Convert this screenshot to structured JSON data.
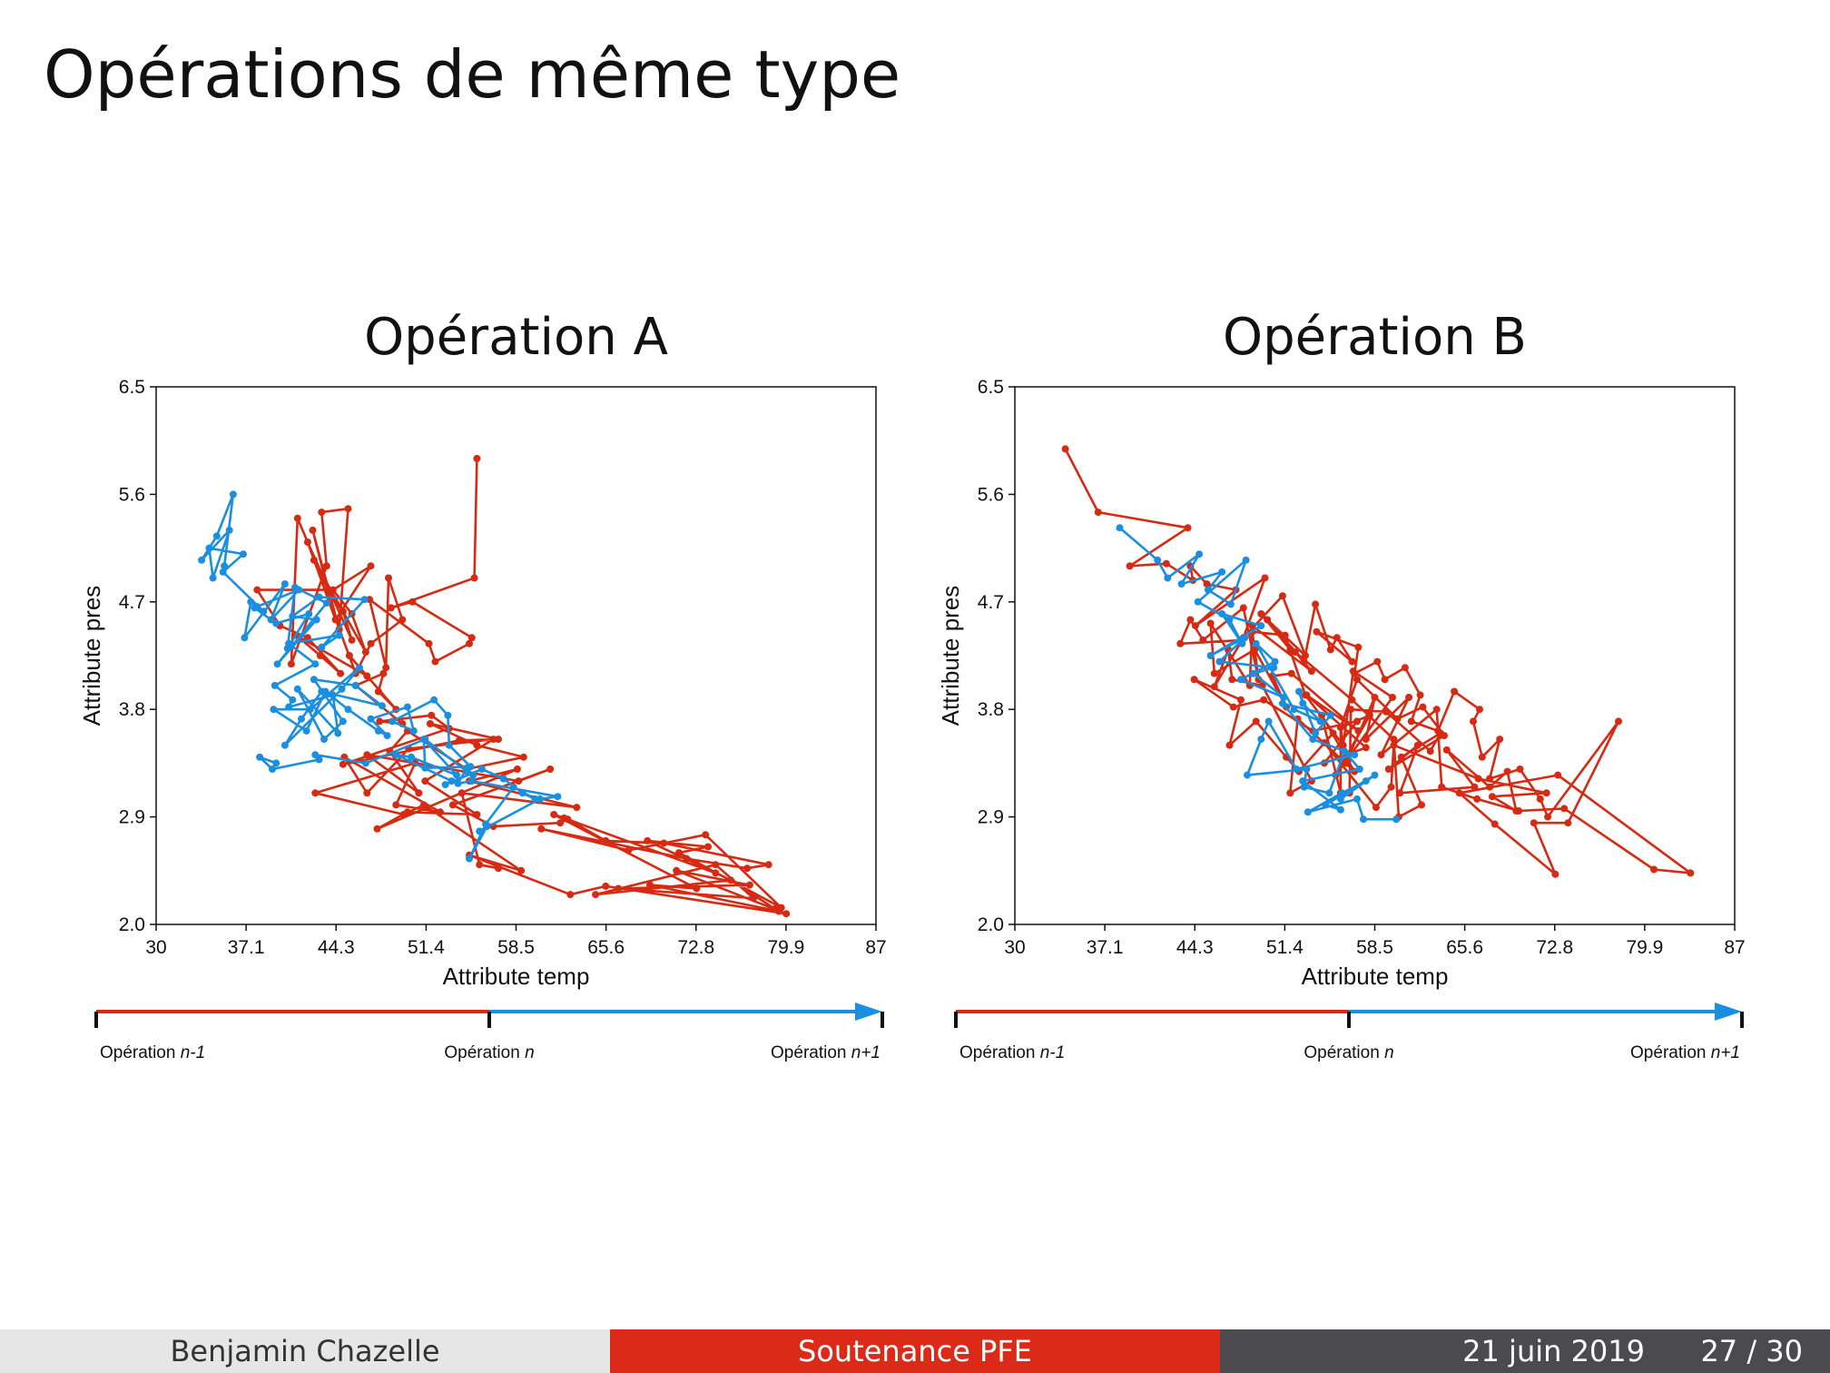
{
  "slide": {
    "title": "Opérations de même type"
  },
  "footer": {
    "author": "Benjamin Chazelle",
    "event": "Soutenance PFE",
    "date": "21 juin 2019",
    "page": "27 / 30"
  },
  "colors": {
    "prev": "#d62a12",
    "next": "#1a8fe0",
    "footer_red": "#db2a18",
    "footer_dark": "#4a4a4f"
  },
  "chart_data": [
    {
      "type": "line",
      "title": "Opération A",
      "xlabel": "Attribute temp",
      "ylabel": "Attribute pres",
      "xlim": [
        30,
        87
      ],
      "ylim": [
        2.0,
        6.5
      ],
      "xticks": [
        "30",
        "37.1",
        "44.3",
        "51.4",
        "58.5",
        "65.6",
        "72.8",
        "79.9",
        "87"
      ],
      "yticks": [
        "2.0",
        "2.9",
        "3.8",
        "4.7",
        "5.6",
        "6.5"
      ],
      "timeline": {
        "start": "Opération",
        "start_suffix": "n-1",
        "mid": "Opération",
        "mid_suffix": "n",
        "end": "Opération",
        "end_suffix": "n+1"
      },
      "series": [
        {
          "name": "Opération n-1 → n",
          "color": "#d62a12",
          "x": [
            55.4,
            55.2,
            48.6,
            50.3,
            55.0,
            54.8,
            52.1,
            51.6,
            46.9,
            48.2,
            48.4,
            49.5,
            47.0,
            45.8,
            42.5,
            46.6,
            45.5,
            44.0,
            47.0,
            44.2,
            42.0,
            45.5,
            44.8,
            43.8,
            41.2,
            40.7,
            43.5,
            43.1,
            45.2,
            44.5,
            42.4,
            43.6,
            38.0,
            39.8,
            42.0,
            44.6,
            43.0,
            41.1,
            46.7,
            45.3,
            49.0,
            47.6,
            48.0,
            45.8,
            49.5,
            47.7,
            51.8,
            53.2,
            44.8,
            54.0,
            57.1,
            51.7,
            55.4,
            59.1,
            54.6,
            49.9,
            48.5,
            50.8,
            46.7,
            58.7,
            61.2,
            53.5,
            56.7,
            62.0,
            62.6,
            65.6,
            70.2,
            78.5,
            76.8,
            72.0,
            60.5,
            67.4,
            73.5,
            79.5,
            71.4,
            73.7,
            68.9,
            74.3,
            62.3,
            61.5,
            72.8,
            69.1,
            79.3,
            79.0,
            75.5,
            64.8,
            74.3,
            77.3,
            66.6,
            77.0,
            71.2,
            79.9,
            65.6,
            62.8,
            54.8,
            58.9,
            51.2,
            49.6,
            42.6,
            50.5,
            49.0,
            52.5,
            44.9,
            46.7,
            50.0,
            56.7,
            51.3,
            55.4,
            49.9,
            47.5,
            58.6,
            54.8,
            63.3,
            54.2,
            55.6,
            57.1
          ],
          "y": [
            5.9,
            4.9,
            4.65,
            4.7,
            4.4,
            4.35,
            4.2,
            4.35,
            4.72,
            4.15,
            4.9,
            4.55,
            4.35,
            4.1,
            5.05,
            4.28,
            4.6,
            4.8,
            5.0,
            4.55,
            5.2,
            4.38,
            4.62,
            4.75,
            5.4,
            4.18,
            5.0,
            5.45,
            5.48,
            4.47,
            5.3,
            4.8,
            4.8,
            4.5,
            4.4,
            4.1,
            4.25,
            4.42,
            4.08,
            4.25,
            3.8,
            3.95,
            4.1,
            4.0,
            3.68,
            3.7,
            3.75,
            3.64,
            3.34,
            3.54,
            3.55,
            3.68,
            3.5,
            3.4,
            3.3,
            3.62,
            3.45,
            3.1,
            3.42,
            3.2,
            3.3,
            3.0,
            2.82,
            2.85,
            2.88,
            2.7,
            2.68,
            2.5,
            2.47,
            2.55,
            2.8,
            2.62,
            2.75,
            2.14,
            2.6,
            2.65,
            2.7,
            2.43,
            2.89,
            2.92,
            2.3,
            2.33,
            2.11,
            2.13,
            2.37,
            2.25,
            2.5,
            2.22,
            2.3,
            2.33,
            2.45,
            2.09,
            2.32,
            2.25,
            2.58,
            2.45,
            3.0,
            2.92,
            3.1,
            3.35,
            3.0,
            2.94,
            3.4,
            3.1,
            3.47,
            3.55,
            3.2,
            2.92,
            2.94,
            2.8,
            3.3,
            3.2,
            2.98,
            3.1,
            2.5,
            2.47
          ]
        },
        {
          "name": "Opération n → n+1",
          "color": "#1a8fe0",
          "x": [
            35.4,
            36.1,
            34.8,
            33.6,
            35.8,
            34.5,
            34.2,
            36.9,
            35.3,
            38.5,
            37.5,
            37.0,
            40.2,
            39.1,
            41.3,
            38.0,
            37.8,
            39.5,
            42.1,
            40.4,
            41.0,
            43.5,
            39.6,
            42.7,
            40.8,
            42.9,
            46.5,
            43.1,
            44.5,
            40.5,
            42.6,
            39.4,
            40.8,
            40.5,
            44.0,
            44.4,
            41.2,
            43.3,
            44.8,
            42.5,
            45.8,
            47.9,
            43.1,
            41.5,
            40.2,
            44.7,
            46.1,
            42.2,
            39.3,
            41.9,
            43.4,
            45.2,
            47.6,
            48.3,
            47.0,
            49.9,
            50.4,
            48.7,
            52.0,
            53.1,
            53.2,
            54.9,
            51.3,
            51.2,
            53.8,
            50.2,
            49.0,
            53.4,
            52.9,
            55.8,
            57.5,
            59.0,
            60.0,
            58.3,
            56.1,
            54.8,
            56.2,
            55.6,
            60.4,
            61.8,
            55.0,
            53.9,
            54.6,
            55.1,
            54.6,
            51.3,
            46.6,
            42.6,
            42.9,
            39.2,
            38.2,
            39.5
          ],
          "y": [
            5.0,
            5.6,
            5.25,
            5.05,
            5.3,
            4.9,
            5.15,
            5.1,
            4.95,
            4.62,
            4.7,
            4.4,
            4.85,
            4.55,
            4.8,
            4.66,
            4.65,
            4.52,
            4.6,
            4.31,
            4.82,
            4.69,
            4.18,
            4.55,
            4.58,
            4.74,
            4.72,
            4.32,
            4.42,
            4.35,
            4.18,
            4.0,
            3.88,
            3.82,
            3.92,
            3.6,
            3.97,
            3.55,
            3.7,
            4.05,
            4.0,
            3.83,
            3.95,
            3.72,
            3.5,
            3.97,
            4.15,
            3.8,
            3.8,
            3.62,
            3.95,
            3.8,
            3.62,
            3.58,
            3.72,
            3.82,
            3.62,
            3.7,
            3.88,
            3.75,
            3.5,
            3.32,
            3.31,
            3.55,
            3.25,
            3.4,
            3.42,
            3.2,
            3.17,
            3.3,
            3.22,
            3.1,
            3.05,
            3.15,
            2.84,
            2.55,
            2.82,
            2.78,
            3.05,
            3.07,
            3.2,
            3.18,
            3.31,
            3.25,
            3.28,
            3.55,
            3.35,
            3.42,
            3.38,
            3.3,
            3.4,
            3.35
          ]
        }
      ]
    },
    {
      "type": "line",
      "title": "Opération B",
      "xlabel": "Attribute temp",
      "ylabel": "Attribute pres",
      "xlim": [
        30,
        87
      ],
      "ylim": [
        2.0,
        6.5
      ],
      "xticks": [
        "30",
        "37.1",
        "44.3",
        "51.4",
        "58.5",
        "65.6",
        "72.8",
        "79.9",
        "87"
      ],
      "yticks": [
        "2.0",
        "2.9",
        "3.8",
        "4.7",
        "5.6",
        "6.5"
      ],
      "timeline": {
        "start": "Opération",
        "start_suffix": "n-1",
        "mid": "Opération",
        "mid_suffix": "n",
        "end": "Opération",
        "end_suffix": "n+1"
      },
      "series": [
        {
          "name": "Opération n-1 → n",
          "color": "#d62a12",
          "x": [
            34.0,
            36.6,
            43.7,
            39.1,
            42.0,
            44.1,
            43.9,
            45.2,
            47.5,
            44.3,
            49.8,
            48.1,
            51.2,
            53.0,
            49.5,
            51.8,
            50.0,
            52.9,
            53.8,
            55.0,
            55.5,
            56.7,
            53.9,
            57.2,
            56.9,
            58.7,
            59.3,
            60.9,
            62.1,
            61.4,
            63.5,
            64.8,
            66.8,
            66.3,
            67.0,
            68.4,
            67.6,
            70.0,
            71.6,
            72.2,
            77.8,
            73.8,
            71.1,
            72.8,
            68.0,
            65.2,
            73.0,
            83.5,
            80.6,
            73.5,
            69.9,
            66.6,
            63.8,
            63.4,
            59.0,
            61.2,
            57.8,
            58.5,
            56.2,
            55.8,
            55.8,
            54.3,
            56.9,
            52.4,
            51.8,
            53.5,
            49.6,
            47.2,
            46.9,
            45.8,
            48.0,
            43.1,
            43.9,
            44.9,
            48.1,
            49.3,
            48.8,
            51.4,
            53.0,
            56.0,
            56.8,
            59.9,
            55.4,
            58.1,
            55.8,
            57.1,
            60.3,
            62.3,
            64.0,
            59.6,
            61.9,
            60.5,
            66.4,
            64.2,
            67.6,
            69.0,
            69.7,
            67.8,
            72.1,
            66.7,
            60.0,
            59.8,
            58.6,
            54.5,
            55.2,
            52.5,
            51.5,
            49.1,
            47.0,
            47.9,
            44.2,
            47.3,
            49.7,
            53.6,
            57.1,
            54.5,
            57.8,
            53.1,
            57.2,
            51.9,
            50.4,
            51.5,
            49.0,
            45.8,
            45.5,
            48.6,
            48.8,
            53.5,
            52.2,
            56.7,
            60.0,
            60.4,
            62.2,
            60.6,
            63.7,
            62.9,
            59.4,
            56.6,
            56.5
          ],
          "y": [
            5.98,
            5.45,
            5.32,
            5.0,
            5.02,
            4.88,
            5.0,
            4.85,
            4.8,
            4.5,
            4.9,
            4.4,
            4.75,
            4.25,
            4.6,
            4.3,
            4.55,
            4.2,
            4.68,
            4.3,
            4.4,
            4.2,
            4.45,
            4.32,
            4.1,
            4.2,
            4.05,
            4.15,
            3.92,
            3.7,
            3.62,
            3.95,
            3.8,
            3.7,
            3.4,
            3.55,
            3.22,
            3.3,
            3.05,
            2.9,
            3.7,
            2.85,
            2.85,
            2.42,
            2.84,
            3.1,
            3.25,
            2.43,
            2.46,
            2.97,
            2.95,
            3.05,
            3.15,
            3.8,
            3.42,
            3.9,
            3.55,
            3.9,
            3.35,
            3.65,
            3.1,
            3.75,
            3.28,
            3.72,
            3.1,
            3.2,
            4.0,
            4.05,
            4.3,
            3.99,
            4.38,
            4.35,
            4.55,
            4.38,
            4.65,
            4.05,
            4.45,
            4.42,
            3.92,
            3.5,
            4.12,
            3.9,
            3.25,
            3.75,
            3.65,
            4.05,
            3.72,
            3.82,
            3.58,
            3.3,
            3.5,
            3.1,
            3.15,
            3.46,
            3.15,
            3.28,
            2.95,
            3.07,
            3.1,
            3.22,
            3.5,
            3.15,
            2.98,
            3.52,
            3.6,
            3.28,
            3.4,
            3.7,
            3.5,
            3.88,
            4.05,
            3.82,
            3.88,
            3.62,
            3.7,
            3.35,
            3.48,
            3.92,
            3.62,
            4.1,
            4.08,
            3.82,
            4.3,
            4.1,
            4.52,
            4.0,
            4.5,
            4.12,
            4.28,
            3.88,
            3.55,
            2.9,
            3.0,
            3.4,
            3.6,
            3.45,
            3.78,
            3.8,
            3.1
          ]
        },
        {
          "name": "Opération n → n+1",
          "color": "#1a8fe0",
          "x": [
            38.3,
            41.3,
            42.1,
            44.6,
            43.2,
            46.4,
            45.3,
            47.1,
            48.3,
            44.5,
            47.0,
            48.0,
            46.4,
            49.5,
            45.5,
            48.2,
            46.2,
            50.5,
            48.9,
            51.3,
            47.9,
            50.6,
            49.1,
            52.1,
            54.2,
            52.8,
            52.5,
            53.8,
            55.0,
            51.2,
            53.6,
            56.9,
            52.3,
            50.1,
            49.5,
            48.4,
            53.1,
            52.9,
            54.9,
            56.1,
            57.3,
            52.8,
            55.8,
            54.6,
            58.5,
            55.8,
            57.8,
            55.9,
            53.2,
            57.1,
            57.6,
            60.2
          ],
          "y": [
            5.32,
            5.05,
            4.9,
            5.1,
            4.85,
            4.95,
            4.8,
            4.68,
            5.05,
            4.7,
            4.55,
            4.35,
            4.6,
            4.5,
            4.25,
            4.4,
            4.2,
            4.15,
            4.1,
            3.9,
            4.05,
            4.2,
            4.35,
            3.8,
            3.7,
            3.85,
            3.95,
            3.6,
            3.75,
            3.85,
            3.55,
            3.42,
            3.3,
            3.7,
            3.55,
            3.25,
            3.3,
            3.15,
            3.1,
            3.45,
            3.3,
            3.2,
            2.96,
            3.0,
            3.25,
            3.05,
            3.2,
            3.1,
            2.94,
            3.05,
            2.88,
            2.88
          ]
        }
      ]
    }
  ]
}
